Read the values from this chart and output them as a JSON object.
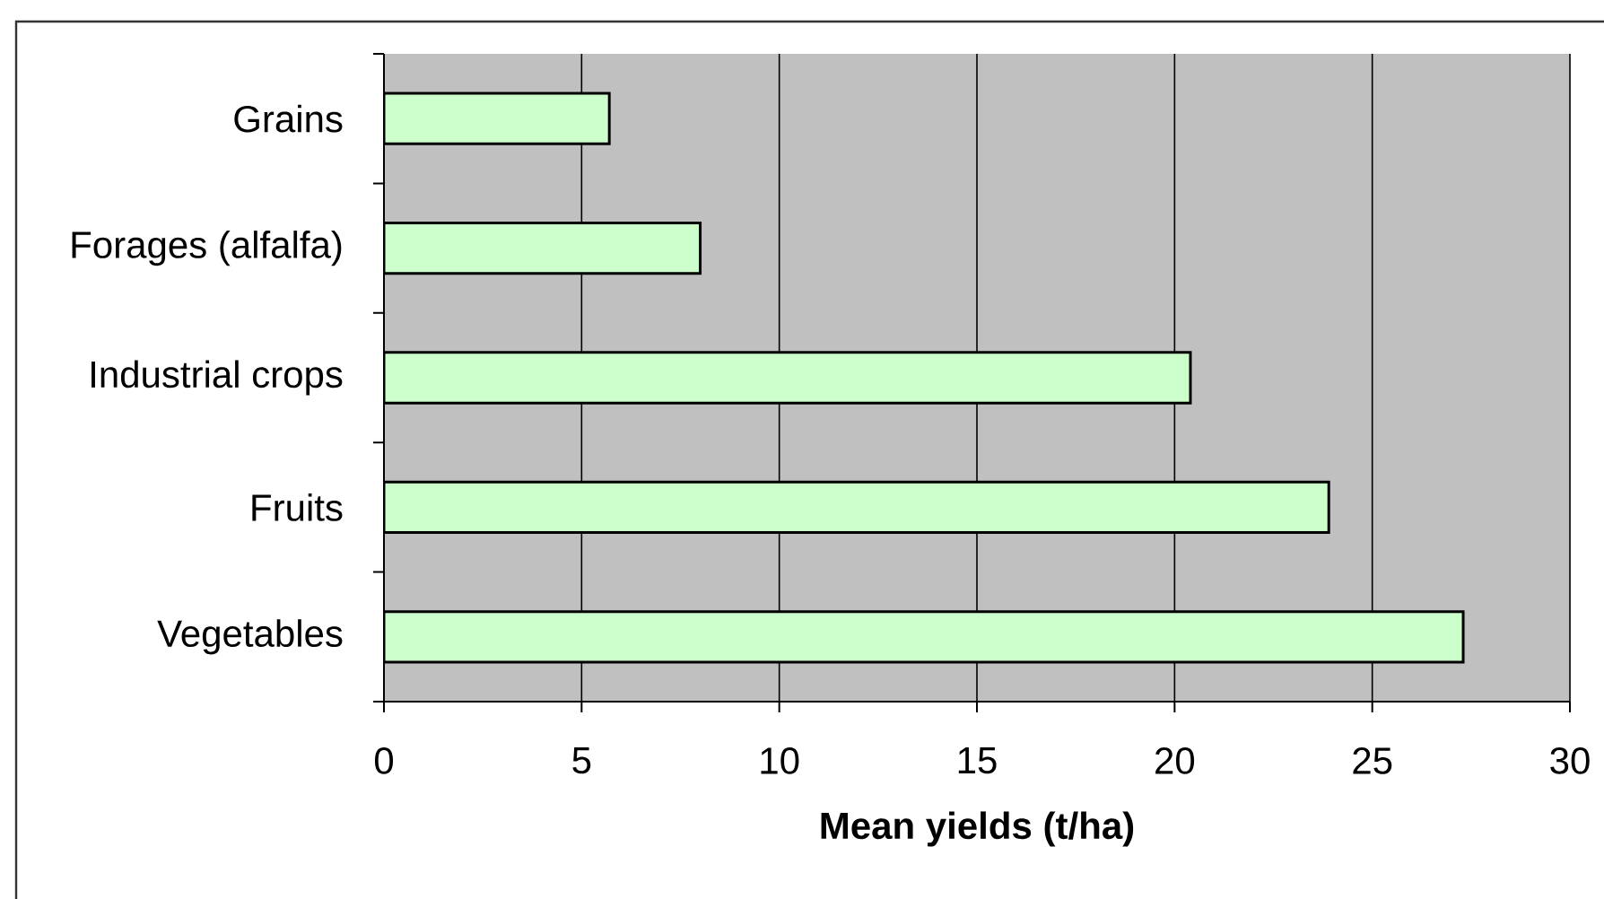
{
  "chart_data": {
    "type": "bar",
    "orientation": "horizontal",
    "categories": [
      "Grains",
      "Forages (alfalfa)",
      "Industrial crops",
      "Fruits",
      "Vegetables"
    ],
    "values": [
      5.7,
      8.0,
      20.4,
      23.9,
      27.3
    ],
    "color": "#ccffcc",
    "xlabel": "Mean yields (t/ha)",
    "xlim": [
      0,
      30
    ],
    "xticks": [
      0,
      5,
      10,
      15,
      20,
      25,
      30
    ],
    "grid": "x"
  }
}
